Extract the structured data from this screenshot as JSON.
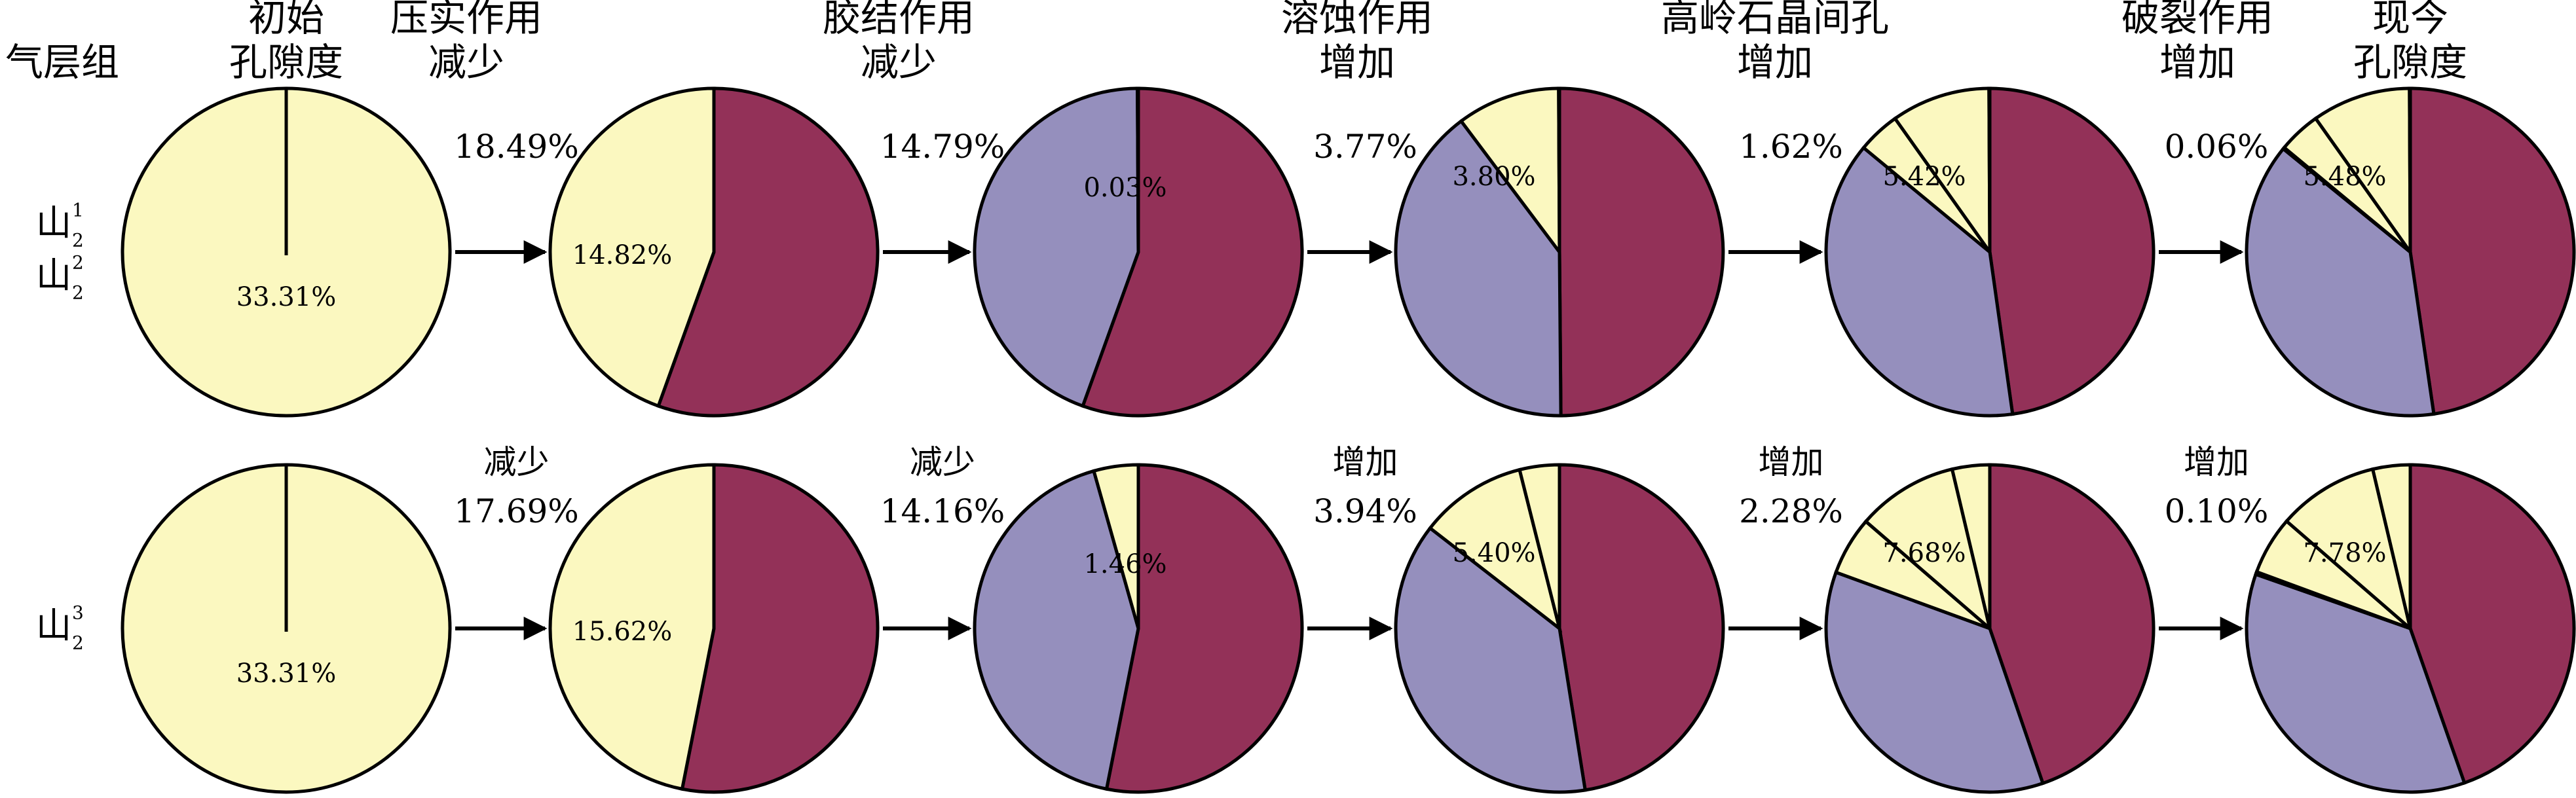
{
  "chart_data": {
    "type": "pie",
    "header": {
      "group_label": "气层组",
      "columns": [
        [
          "初始",
          "孔隙度"
        ],
        [
          "压实作用",
          "减少"
        ],
        [
          "胶结作用",
          "减少"
        ],
        [
          "溶蚀作用",
          "增加"
        ],
        [
          "高岭石晶间孔",
          "增加"
        ],
        [
          "破裂作用",
          "增加"
        ],
        [
          "现今",
          "孔隙度"
        ]
      ]
    },
    "colors": {
      "porosity": "#fbf8c0",
      "compaction_loss": "#933158",
      "cementation_loss": "#958fbd",
      "outline": "#000000"
    },
    "rows": [
      {
        "label_lines": [
          {
            "base": "山",
            "sup": "1",
            "sub": "2"
          },
          {
            "base": "山",
            "sup": "2",
            "sub": "2"
          }
        ],
        "changes": [
          {
            "lines": [
              "18.49%"
            ]
          },
          {
            "lines": [
              "14.79%"
            ]
          },
          {
            "lines": [
              "3.77%"
            ]
          },
          {
            "lines": [
              "1.62%"
            ]
          },
          {
            "lines": [
              "0.06%"
            ]
          }
        ],
        "pies": [
          {
            "label": "33.31%",
            "slices": [
              {
                "kind": "porosity",
                "value": 33.31
              }
            ]
          },
          {
            "label": "14.82%",
            "slices": [
              {
                "kind": "compaction_loss",
                "value": 18.49
              },
              {
                "kind": "porosity",
                "value": 14.82
              }
            ]
          },
          {
            "label": "0.03%",
            "slices": [
              {
                "kind": "compaction_loss",
                "value": 18.49
              },
              {
                "kind": "cementation_loss",
                "value": 14.79
              },
              {
                "kind": "porosity",
                "value": 0.03
              }
            ]
          },
          {
            "label": "3.80%",
            "slices": [
              {
                "kind": "compaction_loss",
                "value": 18.49
              },
              {
                "kind": "cementation_loss",
                "value": 14.79
              },
              {
                "kind": "porosity",
                "value": 3.77
              },
              {
                "kind": "porosity",
                "value": 0.03
              }
            ]
          },
          {
            "label": "5.42%",
            "slices": [
              {
                "kind": "compaction_loss",
                "value": 18.49
              },
              {
                "kind": "cementation_loss",
                "value": 14.79
              },
              {
                "kind": "porosity",
                "value": 1.62
              },
              {
                "kind": "porosity",
                "value": 3.77
              },
              {
                "kind": "porosity",
                "value": 0.03
              }
            ]
          },
          {
            "label": "5.48%",
            "slices": [
              {
                "kind": "compaction_loss",
                "value": 18.49
              },
              {
                "kind": "cementation_loss",
                "value": 14.79
              },
              {
                "kind": "porosity",
                "value": 0.06
              },
              {
                "kind": "porosity",
                "value": 1.62
              },
              {
                "kind": "porosity",
                "value": 3.77
              },
              {
                "kind": "porosity",
                "value": 0.03
              }
            ]
          }
        ]
      },
      {
        "label_lines": [
          {
            "base": "山",
            "sup": "3",
            "sub": "2"
          }
        ],
        "changes": [
          {
            "lines": [
              "减少",
              "17.69%"
            ]
          },
          {
            "lines": [
              "减少",
              "14.16%"
            ]
          },
          {
            "lines": [
              "增加",
              "3.94%"
            ]
          },
          {
            "lines": [
              "增加",
              "2.28%"
            ]
          },
          {
            "lines": [
              "增加",
              "0.10%"
            ]
          }
        ],
        "pies": [
          {
            "label": "33.31%",
            "slices": [
              {
                "kind": "porosity",
                "value": 33.31
              }
            ]
          },
          {
            "label": "15.62%",
            "slices": [
              {
                "kind": "compaction_loss",
                "value": 17.69
              },
              {
                "kind": "porosity",
                "value": 15.62
              }
            ]
          },
          {
            "label": "1.46%",
            "slices": [
              {
                "kind": "compaction_loss",
                "value": 17.69
              },
              {
                "kind": "cementation_loss",
                "value": 14.16
              },
              {
                "kind": "porosity",
                "value": 1.46
              }
            ]
          },
          {
            "label": "5.40%",
            "slices": [
              {
                "kind": "compaction_loss",
                "value": 17.69
              },
              {
                "kind": "cementation_loss",
                "value": 14.16
              },
              {
                "kind": "porosity",
                "value": 3.94
              },
              {
                "kind": "porosity",
                "value": 1.46
              }
            ]
          },
          {
            "label": "7.68%",
            "slices": [
              {
                "kind": "compaction_loss",
                "value": 17.69
              },
              {
                "kind": "cementation_loss",
                "value": 14.16
              },
              {
                "kind": "porosity",
                "value": 2.28
              },
              {
                "kind": "porosity",
                "value": 3.94
              },
              {
                "kind": "porosity",
                "value": 1.46
              }
            ]
          },
          {
            "label": "7.78%",
            "slices": [
              {
                "kind": "compaction_loss",
                "value": 17.69
              },
              {
                "kind": "cementation_loss",
                "value": 14.16
              },
              {
                "kind": "porosity",
                "value": 0.1
              },
              {
                "kind": "porosity",
                "value": 2.28
              },
              {
                "kind": "porosity",
                "value": 3.94
              },
              {
                "kind": "porosity",
                "value": 1.46
              }
            ]
          }
        ]
      }
    ]
  }
}
